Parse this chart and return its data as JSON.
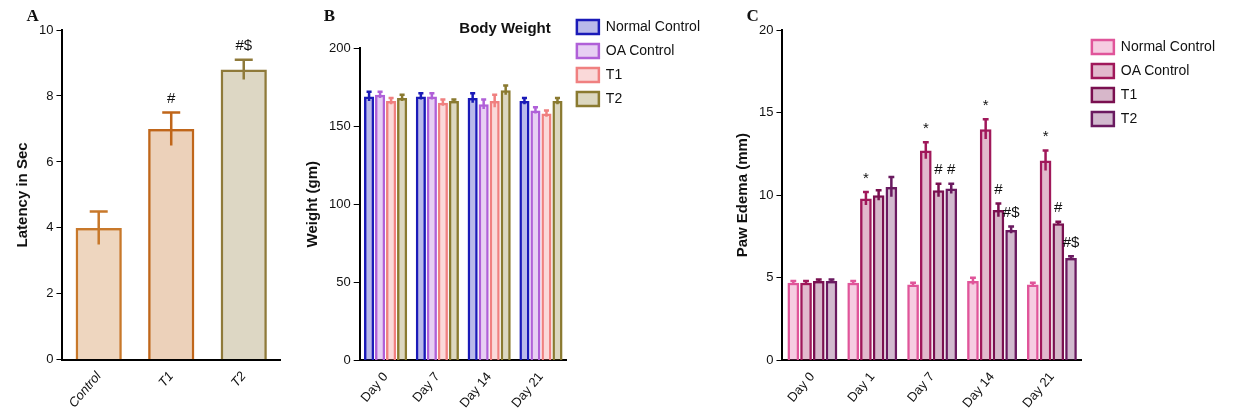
{
  "chart_data": [
    {
      "type": "bar",
      "ylabel": "Latency in Sec",
      "categories": [
        "Control",
        "T1",
        "T2"
      ],
      "values": [
        4.0,
        7.0,
        8.8
      ],
      "errors": [
        0.5,
        0.5,
        0.3
      ],
      "colors": [
        "#c8782a",
        "#c0661a",
        "#8f7a3a"
      ],
      "ylim": [
        0,
        10
      ],
      "yticks": [
        0,
        2,
        4,
        6,
        8,
        10
      ],
      "grid": false,
      "legend": false,
      "annotations": [
        "A",
        {
          "text": "#",
          "x": "T1",
          "y": 7.0
        },
        {
          "text": "#$",
          "x": "T2",
          "y": 8.8
        }
      ]
    },
    {
      "type": "bar",
      "title": "Body Weight",
      "ylabel": "Weight (gm)",
      "categories": [
        "Day 0",
        "Day 7",
        "Day 14",
        "Day 21"
      ],
      "ylim": [
        0,
        200
      ],
      "yticks": [
        0,
        50,
        100,
        150,
        200
      ],
      "grid": false,
      "legend": "right",
      "series": [
        {
          "name": "Normal Control",
          "color": "#1a1ab8",
          "values": [
            169,
            169,
            168,
            166
          ],
          "errors": [
            3,
            2,
            3,
            2
          ]
        },
        {
          "name": "OA Control",
          "color": "#b060d8",
          "values": [
            170,
            169,
            164,
            160
          ],
          "errors": [
            2,
            2,
            3,
            2
          ]
        },
        {
          "name": "T1",
          "color": "#f08080",
          "values": [
            166,
            165,
            166,
            158
          ],
          "errors": [
            2,
            2,
            4,
            2
          ]
        },
        {
          "name": "T2",
          "color": "#8a7a30",
          "values": [
            168,
            166,
            173,
            166
          ],
          "errors": [
            2,
            1,
            3,
            2
          ]
        }
      ],
      "annotations": [
        "B"
      ]
    },
    {
      "type": "bar",
      "ylabel": "Paw Edema (mm)",
      "categories": [
        "Day 0",
        "Day 1",
        "Day 7",
        "Day 14",
        "Day 21"
      ],
      "ylim": [
        0,
        20
      ],
      "yticks": [
        0,
        5,
        10,
        15,
        20
      ],
      "grid": false,
      "legend": "right",
      "series": [
        {
          "name": "Normal Control",
          "color": "#e0559a",
          "values": [
            4.7,
            4.7,
            4.6,
            4.8,
            4.6
          ],
          "errors": [
            0.1,
            0.1,
            0.1,
            0.2,
            0.1
          ]
        },
        {
          "name": "OA Control",
          "color": "#a0185a",
          "values": [
            4.7,
            9.8,
            12.7,
            14.0,
            12.1
          ],
          "errors": [
            0.1,
            0.4,
            0.5,
            0.6,
            0.6
          ]
        },
        {
          "name": "T1",
          "color": "#7a1050",
          "values": [
            4.8,
            10.0,
            10.3,
            9.1,
            8.3
          ],
          "errors": [
            0.1,
            0.3,
            0.4,
            0.4,
            0.1
          ]
        },
        {
          "name": "T2",
          "color": "#6a1a60",
          "values": [
            4.8,
            10.5,
            10.4,
            7.9,
            6.2
          ],
          "errors": [
            0.1,
            0.6,
            0.3,
            0.2,
            0.1
          ]
        }
      ],
      "annotations": [
        "C",
        {
          "text": "*",
          "x": "Day 1",
          "y": 9.8
        },
        {
          "text": "*",
          "x": "Day 7",
          "y": 12.7
        },
        {
          "text": "#",
          "x": "Day 7",
          "y": 10.3
        },
        {
          "text": "#",
          "x": "Day 7",
          "y": 10.4
        },
        {
          "text": "*",
          "x": "Day 14",
          "y": 14.0
        },
        {
          "text": "#",
          "x": "Day 14",
          "y": 9.1
        },
        {
          "text": "#$",
          "x": "Day 14",
          "y": 7.9
        },
        {
          "text": "*",
          "x": "Day 21",
          "y": 12.1
        },
        {
          "text": "#",
          "x": "Day 21",
          "y": 8.3
        },
        {
          "text": "#$",
          "x": "Day 21",
          "y": 6.2
        }
      ]
    }
  ]
}
